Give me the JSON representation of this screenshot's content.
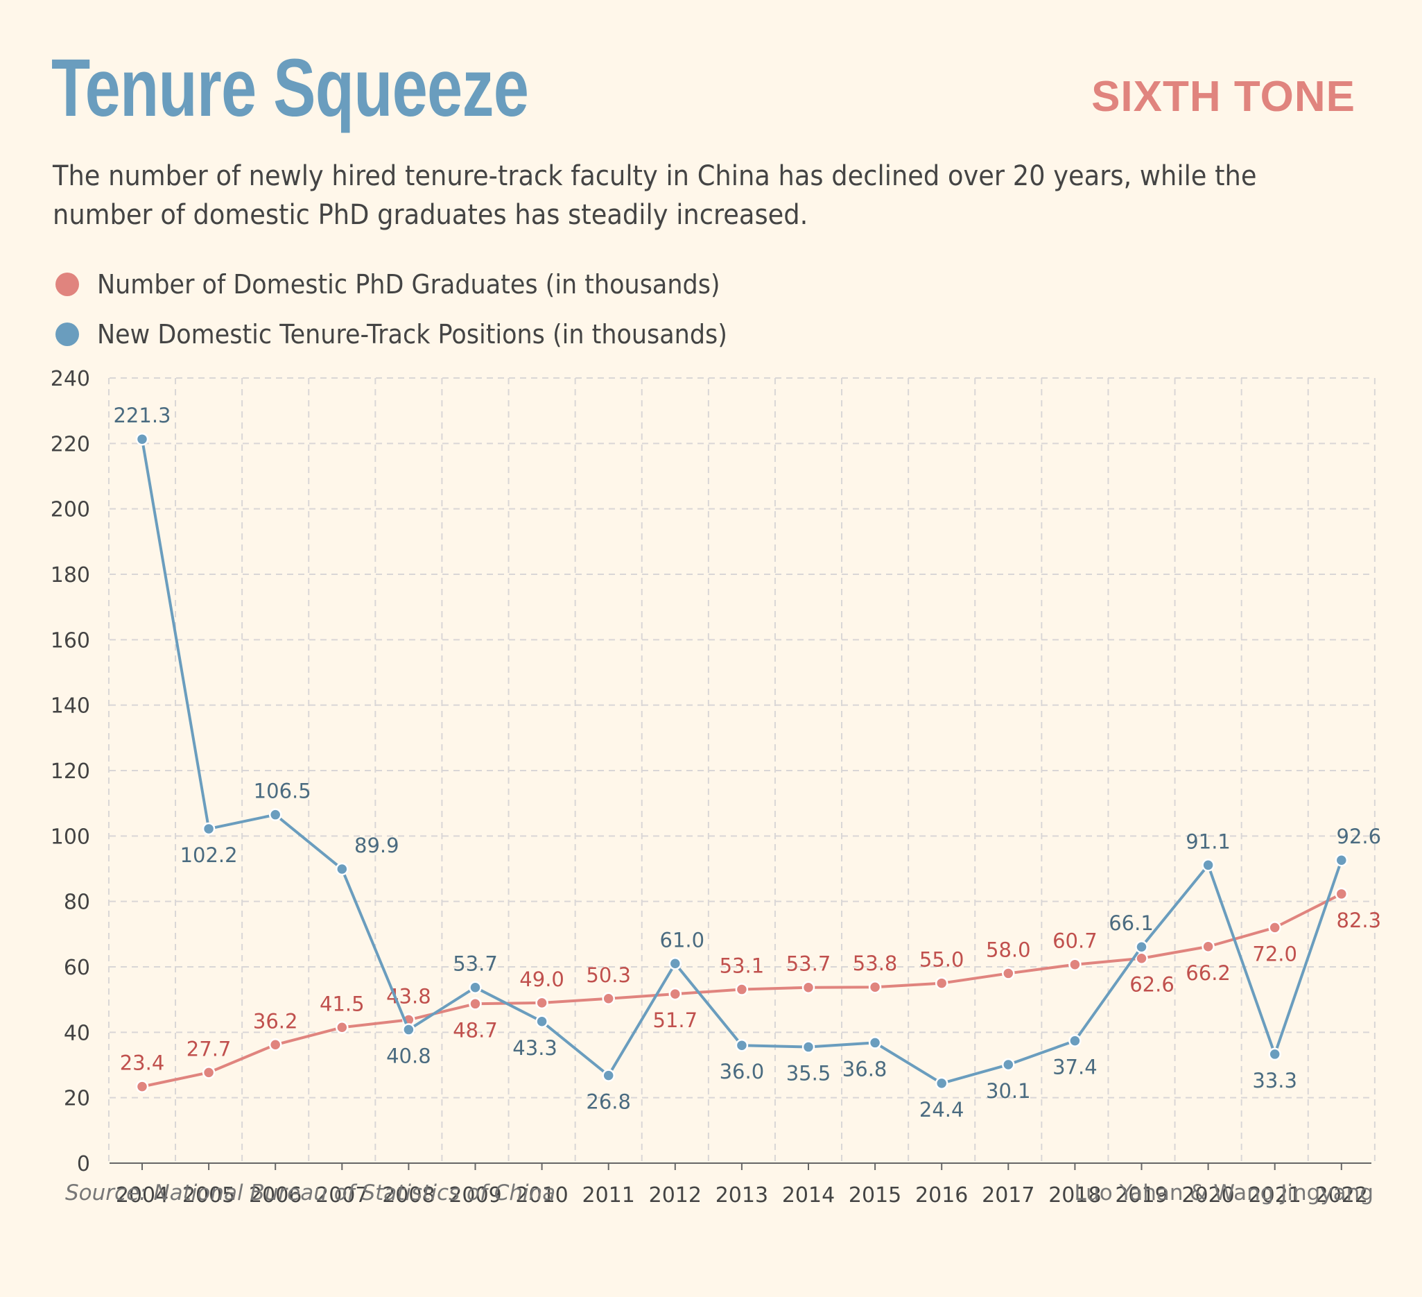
{
  "header": {
    "title": "Tenure Squeeze",
    "brand": "SIXTH TONE",
    "subtitle": "The number of newly hired tenure-track faculty in China has declined over 20 years, while the number of domestic PhD graduates has steadily increased."
  },
  "legend": [
    {
      "label": "Number of Domestic PhD Graduates (in thousands)",
      "color": "#e0847e"
    },
    {
      "label": "New Domestic Tenure-Track Positions (in thousands)",
      "color": "#6a9dbe"
    }
  ],
  "footer": {
    "source": "Source: National Bureau of Statistics of China",
    "credit": "Luo Yahan & Wang Jingyang"
  },
  "chart_data": {
    "type": "line",
    "title": "Tenure Squeeze",
    "xlabel": "",
    "ylabel": "",
    "ylim": [
      0,
      240
    ],
    "yticks": [
      0,
      20,
      40,
      60,
      80,
      100,
      120,
      140,
      160,
      180,
      200,
      220,
      240
    ],
    "grid": true,
    "legend_position": "top-left",
    "x": [
      "2004",
      "2005",
      "2006",
      "2007",
      "2008",
      "2009",
      "2010",
      "2011",
      "2012",
      "2013",
      "2014",
      "2015",
      "2016",
      "2017",
      "2018",
      "2019",
      "2020",
      "2021",
      "2022"
    ],
    "series": [
      {
        "name": "Number of Domestic PhD Graduates (in thousands)",
        "color": "#e0847e",
        "label_color": "#c0504d",
        "values": [
          23.4,
          27.7,
          36.2,
          41.5,
          43.8,
          48.7,
          49.0,
          50.3,
          51.7,
          53.1,
          53.7,
          53.8,
          55.0,
          58.0,
          60.7,
          62.6,
          66.2,
          72.0,
          82.3
        ],
        "labels": [
          "23.4",
          "27.7",
          "36.2",
          "41.5",
          "43.8",
          "48.7",
          "49.0",
          "50.3",
          "51.7",
          "53.1",
          "53.7",
          "53.8",
          "55.0",
          "58.0",
          "60.7",
          "62.6",
          "66.2",
          "72.0",
          "82.3"
        ]
      },
      {
        "name": "New Domestic Tenure-Track Positions (in thousands)",
        "color": "#6a9dbe",
        "label_color": "#4a6b80",
        "values": [
          221.3,
          102.2,
          106.5,
          89.9,
          40.8,
          53.7,
          43.3,
          26.8,
          61.0,
          36.0,
          35.5,
          36.8,
          24.4,
          30.1,
          37.4,
          66.1,
          91.1,
          33.3,
          92.6
        ],
        "labels": [
          "221.3",
          "102.2",
          "106.5",
          "89.9",
          "40.8",
          "53.7",
          "43.3",
          "26.8",
          "61.0",
          "36.0",
          "35.5",
          "36.8",
          "24.4",
          "30.1",
          "37.4",
          "66.1",
          "91.1",
          "33.3",
          "92.6"
        ]
      }
    ]
  }
}
